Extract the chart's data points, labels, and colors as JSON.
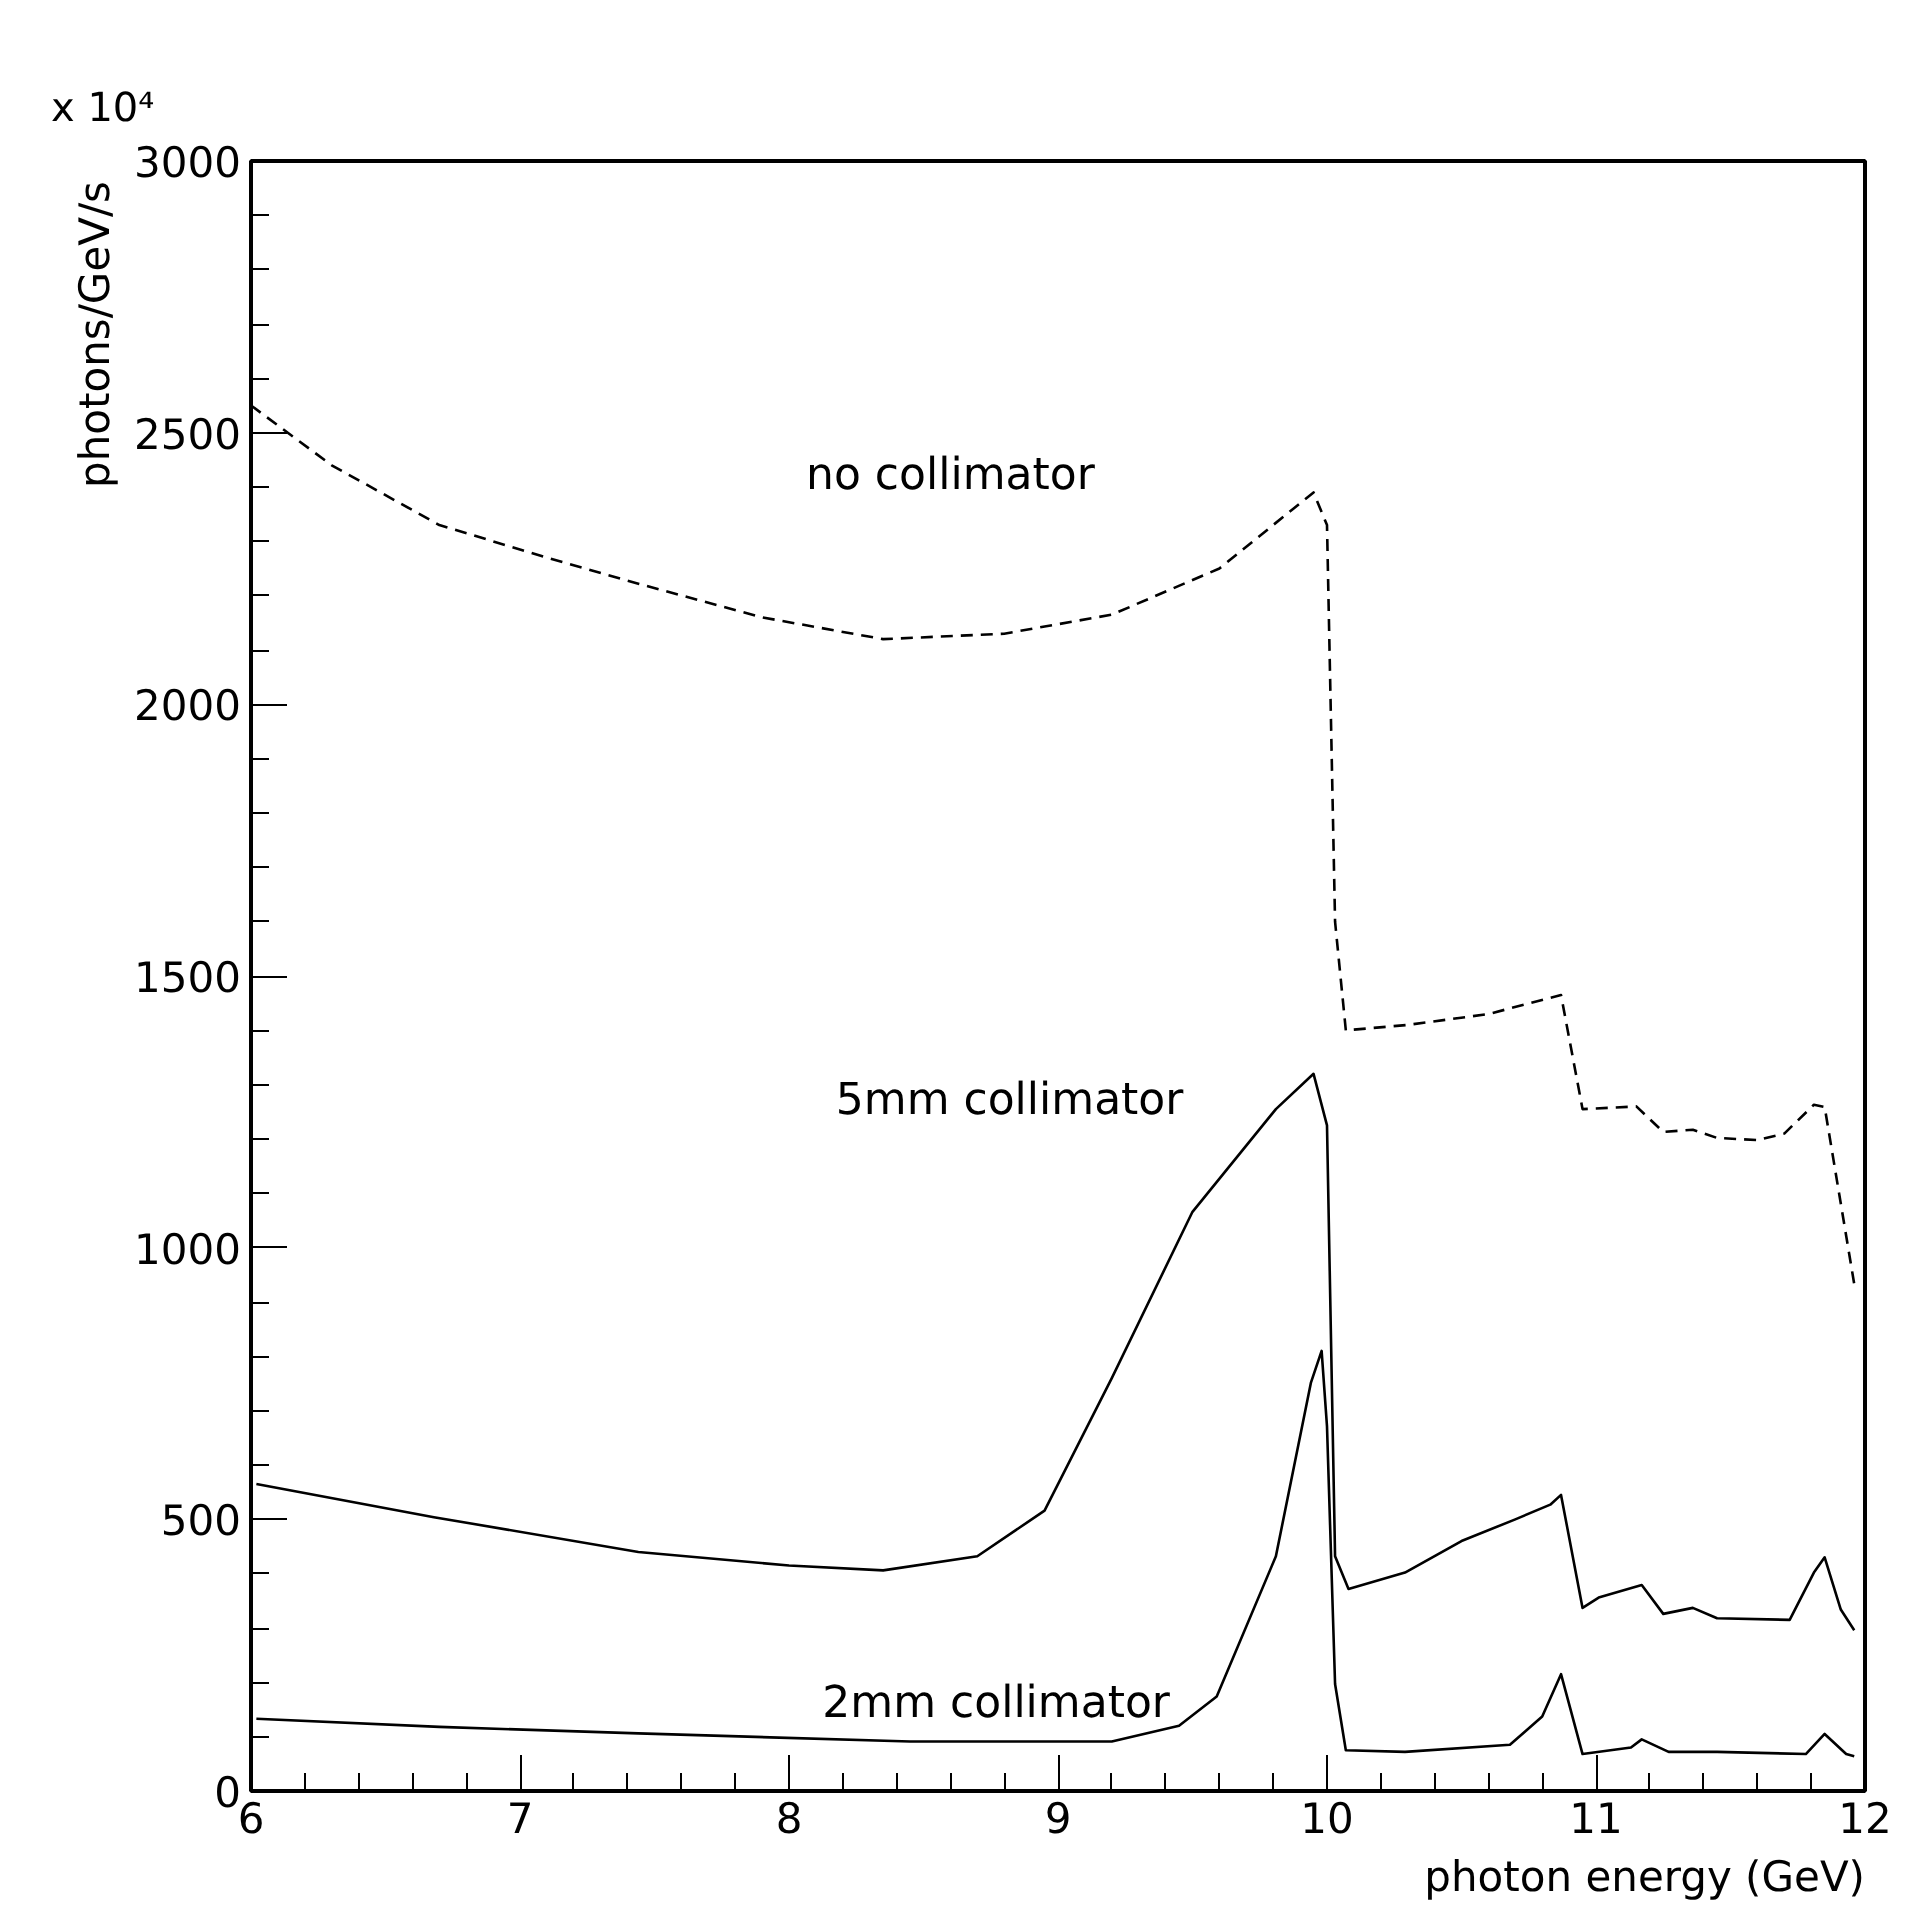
{
  "chart_data": {
    "type": "line",
    "xlabel": "photon energy (GeV)",
    "ylabel": "photons/GeV/s",
    "xlim": [
      6,
      12
    ],
    "ylim": [
      0,
      3000
    ],
    "xticks": [
      6,
      7,
      8,
      9,
      10,
      11,
      12
    ],
    "yticks": [
      0,
      500,
      1000,
      1500,
      2000,
      2500,
      3000
    ],
    "grid": false,
    "marker": "none",
    "series": [
      {
        "name": "no collimator",
        "color": "#000000",
        "line_style": "dashed",
        "x": [
          6.0,
          6.3,
          6.7,
          7.1,
          7.44,
          7.9,
          8.35,
          8.8,
          9.2,
          9.6,
          9.95,
          10.0,
          10.03,
          10.07,
          10.3,
          10.6,
          10.87,
          10.95,
          11.15,
          11.25,
          11.36,
          11.45,
          11.6,
          11.7,
          11.81,
          11.85,
          11.96
        ],
        "values": [
          2550,
          2440,
          2330,
          2270,
          2222,
          2160,
          2120,
          2130,
          2165,
          2250,
          2390,
          2330,
          1600,
          1400,
          1410,
          1430,
          1465,
          1255,
          1260,
          1213,
          1217,
          1202,
          1198,
          1210,
          1263,
          1259,
          933
        ]
      },
      {
        "name": "5mm collimator",
        "color": "#000000",
        "line_style": "solid",
        "x": [
          6.02,
          6.68,
          7.44,
          8.0,
          8.35,
          8.7,
          8.95,
          9.2,
          9.5,
          9.81,
          9.95,
          10.0,
          10.03,
          10.08,
          10.29,
          10.5,
          10.7,
          10.83,
          10.87,
          10.95,
          11.01,
          11.17,
          11.25,
          11.36,
          11.45,
          11.72,
          11.81,
          11.85,
          11.91,
          11.96
        ],
        "values": [
          565,
          504,
          440,
          415,
          406,
          432,
          516,
          760,
          1066,
          1255,
          1320,
          1225,
          432,
          372,
          402,
          460,
          500,
          527,
          545,
          337,
          356,
          379,
          326,
          337,
          318,
          315,
          402,
          430,
          334,
          296
        ]
      },
      {
        "name": "2mm collimator",
        "color": "#000000",
        "line_style": "solid",
        "x": [
          6.02,
          6.7,
          7.44,
          8.45,
          9.2,
          9.45,
          9.59,
          9.81,
          9.94,
          9.98,
          10.0,
          10.03,
          10.07,
          10.29,
          10.68,
          10.8,
          10.87,
          10.95,
          11.13,
          11.17,
          11.27,
          11.45,
          11.78,
          11.85,
          11.93,
          11.96
        ],
        "values": [
          133,
          118,
          106,
          91,
          91,
          120,
          174,
          432,
          751,
          810,
          671,
          197,
          75,
          72,
          85,
          137,
          215,
          68,
          80,
          95,
          72,
          72,
          68,
          105,
          68,
          64
        ]
      }
    ],
    "annotations": [
      "x 10⁴"
    ]
  }
}
